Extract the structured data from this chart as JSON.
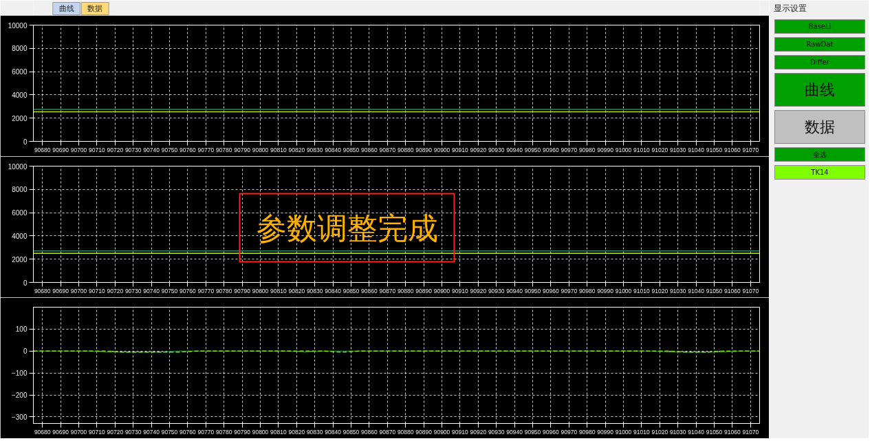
{
  "chart_data": [
    {
      "type": "other",
      "annotations": [
        "曲线",
        "数据"
      ],
      "colors": [
        "#c5d5f0",
        "#ffd97a"
      ]
    },
    {
      "type": "line",
      "x": [
        90675,
        91075
      ],
      "xlim": [
        90675,
        91075
      ],
      "ylim": [
        0,
        10000
      ],
      "yticks": [
        0,
        2000,
        4000,
        6000,
        8000,
        10000
      ],
      "grid": true,
      "xticks": [
        90680,
        90690,
        90700,
        90710,
        90720,
        90730,
        90740,
        90750,
        90760,
        90770,
        90780,
        90790,
        90800,
        90810,
        90820,
        90830,
        90840,
        90850,
        90860,
        90870,
        90880,
        90890,
        90900,
        90910,
        90920,
        90930,
        90940,
        90950,
        90960,
        90970,
        90980,
        90990,
        91000,
        91010,
        91020,
        91030,
        91040,
        91050,
        91060,
        91070
      ],
      "series": [
        {
          "color": "#2e8b57",
          "values": [
            2750,
            2750
          ]
        },
        {
          "color": "#b4e61e",
          "values": [
            2550,
            2550
          ]
        }
      ]
    },
    {
      "type": "line",
      "x": [
        90675,
        91075
      ],
      "xlim": [
        90675,
        91075
      ],
      "ylim": [
        0,
        10000
      ],
      "yticks": [
        0,
        2000,
        4000,
        6000,
        8000,
        10000
      ],
      "grid": true,
      "xticks": [
        90680,
        90690,
        90700,
        90710,
        90720,
        90730,
        90740,
        90750,
        90760,
        90770,
        90780,
        90790,
        90800,
        90810,
        90820,
        90830,
        90840,
        90850,
        90860,
        90870,
        90880,
        90890,
        90900,
        90910,
        90920,
        90930,
        90940,
        90950,
        90960,
        90970,
        90980,
        90990,
        91000,
        91010,
        91020,
        91030,
        91040,
        91050,
        91060,
        91070
      ],
      "annotations": [
        "参数调整完成"
      ],
      "series": [
        {
          "color": "#2e8b57",
          "values": [
            2700,
            2700
          ]
        },
        {
          "color": "#b4e61e",
          "values": [
            2500,
            2500
          ]
        }
      ]
    },
    {
      "type": "line",
      "xlim": [
        90675,
        91075
      ],
      "ylim": [
        -330,
        200
      ],
      "yticks": [
        -300,
        -200,
        -100,
        0,
        100
      ],
      "grid": true,
      "x": [
        90675,
        90685,
        90695,
        90705,
        90715,
        90725,
        90735,
        90745,
        90755,
        90765,
        90775,
        90785,
        90795,
        90805,
        90815,
        90825,
        90835,
        90845,
        90855,
        90865,
        90875,
        90885,
        90895,
        90905,
        90915,
        90925,
        90935,
        90945,
        90955,
        90965,
        90975,
        90985,
        90995,
        91005,
        91015,
        91025,
        91035,
        91045,
        91055,
        91065,
        91075
      ],
      "xticks": [
        90680,
        90690,
        90700,
        90710,
        90720,
        90730,
        90740,
        90750,
        90760,
        90770,
        90780,
        90790,
        90800,
        90810,
        90820,
        90830,
        90840,
        90850,
        90860,
        90870,
        90880,
        90890,
        90900,
        90910,
        90920,
        90930,
        90940,
        90950,
        90960,
        90970,
        90980,
        90990,
        91000,
        91010,
        91020,
        91030,
        91040,
        91050,
        91060,
        91070
      ],
      "series": [
        {
          "color": "#1a6b2a",
          "values": [
            0,
            0,
            0,
            0,
            -5,
            -5,
            -5,
            -5,
            0,
            0,
            0,
            0,
            0,
            0,
            0,
            -5,
            0,
            0,
            0,
            0,
            0,
            0,
            0,
            0,
            0,
            0,
            0,
            0,
            0,
            0,
            0,
            0,
            0,
            0,
            0,
            -5,
            -5,
            -5,
            -5,
            0,
            0
          ]
        },
        {
          "color": "#7fe01e",
          "line_style": "dashed",
          "values": [
            0,
            0,
            0,
            0,
            0,
            -5,
            -5,
            -5,
            -5,
            0,
            0,
            0,
            0,
            0,
            0,
            0,
            0,
            -5,
            0,
            0,
            0,
            0,
            0,
            0,
            0,
            0,
            0,
            0,
            0,
            0,
            0,
            0,
            0,
            0,
            0,
            0,
            -5,
            -5,
            0,
            0,
            0
          ]
        }
      ]
    },
    {
      "type": "other",
      "title": "显示设置",
      "annotations": [
        "BaseLi",
        "RawDat",
        "Differ",
        "曲线",
        "数据",
        "全选",
        "TK14"
      ],
      "colors": [
        "#00a000",
        "#00a000",
        "#00a000",
        "#00a000",
        "#c0c0c0",
        "#00a000",
        "#80ff00"
      ]
    }
  ]
}
